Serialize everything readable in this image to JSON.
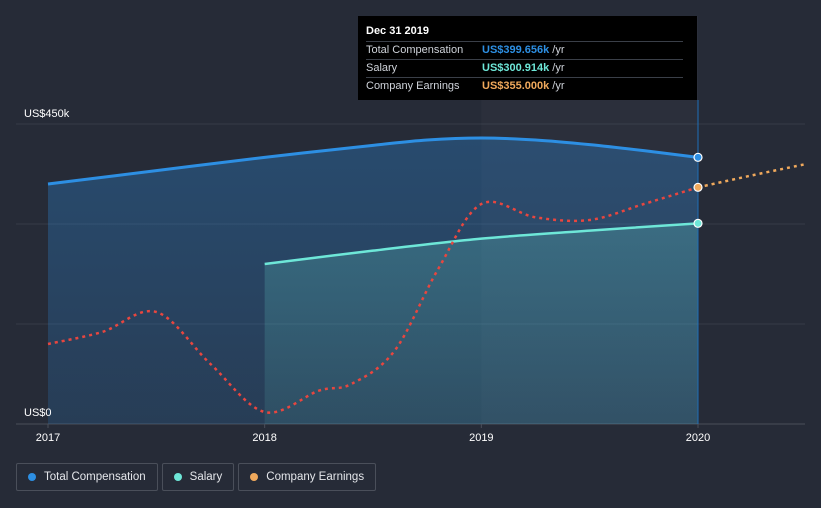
{
  "chart_data": {
    "type": "area",
    "y_axis": {
      "min_label": "US$0",
      "max_label": "US$450k",
      "ylim": [
        0,
        450
      ]
    },
    "x_axis": {
      "ticks": [
        "2017",
        "2018",
        "2019",
        "2020"
      ],
      "xlim": [
        2017.0,
        2020.5
      ]
    },
    "series": [
      {
        "name": "Total Compensation",
        "color": "#2d8fe3",
        "points": [
          [
            2017.0,
            360
          ],
          [
            2017.5,
            380
          ],
          [
            2018.0,
            400
          ],
          [
            2018.5,
            418
          ],
          [
            2018.75,
            426
          ],
          [
            2019.0,
            429
          ],
          [
            2019.25,
            426
          ],
          [
            2019.5,
            419
          ],
          [
            2019.75,
            410
          ],
          [
            2020.0,
            400
          ]
        ]
      },
      {
        "name": "Salary",
        "color": "#6ee7d8",
        "points": [
          [
            2018.0,
            240
          ],
          [
            2018.5,
            260
          ],
          [
            2019.0,
            278
          ],
          [
            2019.5,
            290
          ],
          [
            2020.0,
            301
          ]
        ]
      },
      {
        "name": "Company Earnings",
        "color": "#e8463f",
        "points": [
          [
            2017.0,
            120
          ],
          [
            2017.25,
            138
          ],
          [
            2017.5,
            168
          ],
          [
            2017.75,
            90
          ],
          [
            2018.0,
            18
          ],
          [
            2018.25,
            50
          ],
          [
            2018.4,
            60
          ],
          [
            2018.6,
            110
          ],
          [
            2018.8,
            232
          ],
          [
            2019.0,
            330
          ],
          [
            2019.25,
            310
          ],
          [
            2019.5,
            306
          ],
          [
            2019.75,
            330
          ],
          [
            2020.0,
            355
          ]
        ]
      },
      {
        "name": "Company Earnings (forecast)",
        "color": "#f0a95c",
        "points": [
          [
            2020.0,
            355
          ],
          [
            2020.25,
            373
          ],
          [
            2020.5,
            390
          ]
        ]
      }
    ],
    "highlight_x": 2020.0
  },
  "tooltip": {
    "title": "Dec 31 2019",
    "rows": [
      {
        "label": "Total Compensation",
        "value": "US$399.656k",
        "unit": "/yr",
        "color": "#2d8fe3"
      },
      {
        "label": "Salary",
        "value": "US$300.914k",
        "unit": "/yr",
        "color": "#6ee7d8"
      },
      {
        "label": "Company Earnings",
        "value": "US$355.000k",
        "unit": "/yr",
        "color": "#f0a95c"
      }
    ]
  },
  "legend": [
    {
      "label": "Total Compensation",
      "color": "#2d8fe3"
    },
    {
      "label": "Salary",
      "color": "#6ee7d8"
    },
    {
      "label": "Company Earnings",
      "color": "#f0a95c"
    }
  ]
}
